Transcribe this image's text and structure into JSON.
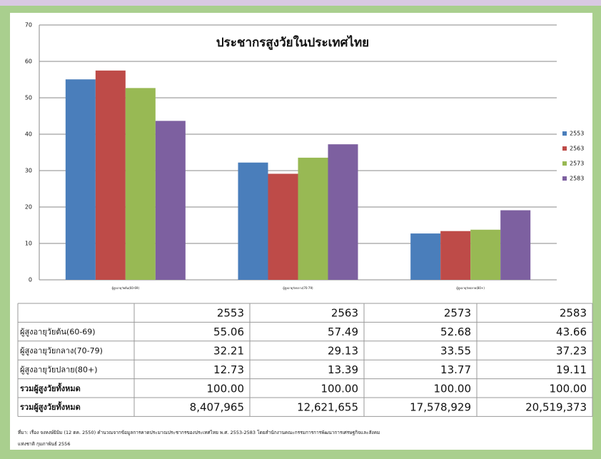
{
  "chart_data": {
    "type": "bar",
    "title": "ประชากรสูงวัยในประเทศไทย",
    "categories": [
      "ผู้สูงอายุวัยต้น(60-69)",
      "ผู้สูงอายุวัยกลาง(70-79)",
      "ผู้สูงอายุวัยปลาย(80+)"
    ],
    "series": [
      {
        "name": "2553",
        "color": "#4a7ebb",
        "values": [
          55.06,
          32.21,
          12.73
        ]
      },
      {
        "name": "2563",
        "color": "#be4b48",
        "values": [
          57.49,
          29.13,
          13.39
        ]
      },
      {
        "name": "2573",
        "color": "#98b954",
        "values": [
          52.68,
          33.55,
          13.77
        ]
      },
      {
        "name": "2583",
        "color": "#7d60a0",
        "values": [
          43.66,
          37.23,
          19.11
        ]
      }
    ],
    "ylim": [
      0,
      70
    ],
    "yticks": [
      0,
      10,
      20,
      30,
      40,
      50,
      60,
      70
    ],
    "grid": true,
    "legend": "right",
    "table": {
      "header": [
        "2553",
        "2563",
        "2573",
        "2583"
      ],
      "rows": [
        [
          "ผู้สูงอายุวัยต้น(60-69)",
          "55.06",
          "57.49",
          "52.68",
          "43.66"
        ],
        [
          "ผู้สูงอายุวัยกลาง(70-79)",
          "32.21",
          "29.13",
          "33.55",
          "37.23"
        ],
        [
          "ผู้สูงอายุวัยปลาย(80+)",
          "12.73",
          "13.39",
          "13.77",
          "19.11"
        ],
        [
          "รวมผู้สูงวัยทั้งหมด",
          "100.00",
          "100.00",
          "100.00",
          "100.00"
        ],
        [
          "รวมผู้สูงวัยทั้งหมด",
          "8,407,965",
          "12,621,655",
          "17,578,929",
          "20,519,373"
        ]
      ]
    },
    "source": [
      "ที่มา: เรื่อง จงหงษ์ยิมิม (12 ตค. 2550) คำนวณจากข้อมูลการคาดประมาณประชากรของประเทศไทย พ.ศ. 2553-2583 โดยสำนักงานคณะกรรมการการพัฒนาการเศรษฐกิจและสังคม",
      "แห่งชาติ กุมภาพันธ์ 2556"
    ]
  }
}
